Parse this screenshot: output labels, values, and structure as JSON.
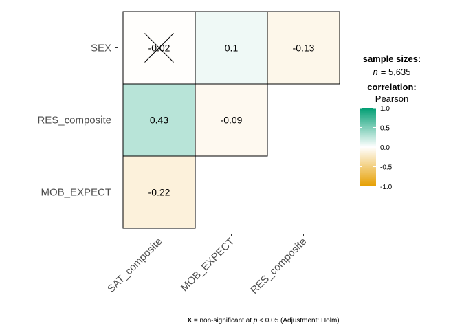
{
  "chart_data": {
    "type": "heatmap",
    "subtype": "correlation-matrix-lower-triangle",
    "rows": [
      "SEX",
      "RES_composite",
      "MOB_EXPECT"
    ],
    "columns": [
      "SAT_composite",
      "MOB_EXPECT",
      "RES_composite"
    ],
    "cells": [
      {
        "row": "SEX",
        "col": "SAT_composite",
        "value": -0.02,
        "label": "-0.02",
        "non_significant": true
      },
      {
        "row": "SEX",
        "col": "MOB_EXPECT",
        "value": 0.1,
        "label": "0.1",
        "non_significant": false
      },
      {
        "row": "SEX",
        "col": "RES_composite",
        "value": -0.13,
        "label": "-0.13",
        "non_significant": false
      },
      {
        "row": "RES_composite",
        "col": "SAT_composite",
        "value": 0.43,
        "label": "0.43",
        "non_significant": false
      },
      {
        "row": "RES_composite",
        "col": "MOB_EXPECT",
        "value": -0.09,
        "label": "-0.09",
        "non_significant": false
      },
      {
        "row": "MOB_EXPECT",
        "col": "SAT_composite",
        "value": -0.22,
        "label": "-0.22",
        "non_significant": false
      }
    ],
    "legend": {
      "sample_title": "sample sizes:",
      "n_symbol": "n",
      "n_value": "= 5,635",
      "correlation_title": "correlation:",
      "method": "Pearson",
      "scale_min": -1.0,
      "scale_max": 1.0,
      "ticks": [
        "1.0",
        "0.5",
        "0.0",
        "-0.5",
        "-1.0"
      ],
      "tick_values": [
        1.0,
        0.5,
        0.0,
        -0.5,
        -1.0
      ],
      "colors": {
        "low": "#E69F00",
        "mid": "#FFFFFF",
        "high": "#009E73"
      }
    },
    "caption": {
      "mark": "X",
      "text_before": " = non-significant at ",
      "p_symbol": "p",
      "text_after": " < 0.05 (Adjustment: Holm)"
    }
  }
}
